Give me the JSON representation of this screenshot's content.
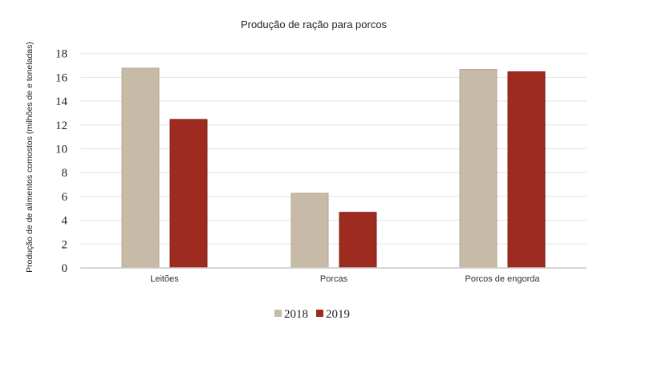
{
  "chart_data": {
    "type": "bar",
    "title": "Produção de ração para porcos",
    "xlabel": "",
    "ylabel": "Produção de de alimentos comostos (milhões de e toneladas)",
    "categories": [
      "Leitões",
      "Porcas",
      "Porcos de engorda"
    ],
    "series": [
      {
        "name": "2018",
        "color": "#C7BAA6",
        "border": "#B5A792",
        "values": [
          16.8,
          6.3,
          16.7
        ]
      },
      {
        "name": "2019",
        "color": "#9E2B1F",
        "border": "#7E1F17",
        "values": [
          12.5,
          4.7,
          16.5
        ]
      }
    ],
    "ylim": [
      0,
      18
    ],
    "yticks": [
      0,
      2,
      4,
      6,
      8,
      10,
      12,
      14,
      16,
      18
    ],
    "grid": true,
    "legend_position": "bottom"
  }
}
